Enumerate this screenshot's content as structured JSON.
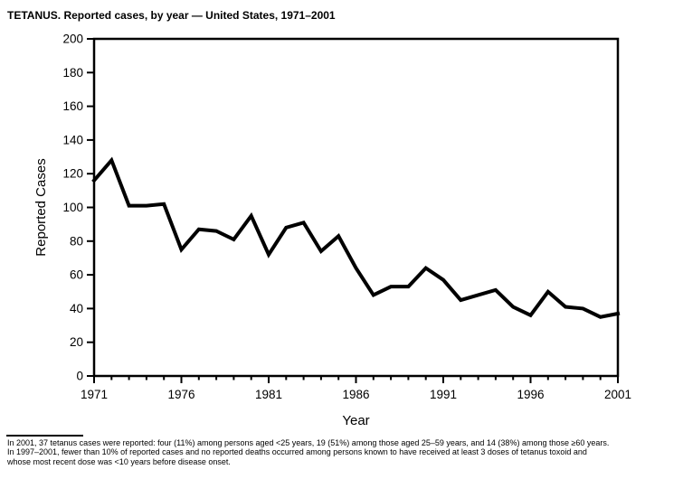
{
  "page": {
    "title": "TETANUS. Reported cases, by year — United States, 1971–2001",
    "footnote_lines": [
      "In 2001, 37 tetanus cases were reported: four (11%) among persons aged <25 years, 19 (51%) among those aged 25–59 years, and 14 (38%) among those ≥60 years.",
      "In 1997–2001, fewer than 10% of reported cases and no reported deaths occurred among persons known to have received at least 3 doses of tetanus toxoid and",
      "whose most recent dose was <10 years before disease onset."
    ]
  },
  "chart_data": {
    "type": "line",
    "title": "TETANUS. Reported cases, by year — United States, 1971–2001",
    "xlabel": "Year",
    "ylabel": "Reported Cases",
    "xlim": [
      1971,
      2001
    ],
    "ylim": [
      0,
      200
    ],
    "ytick_interval": 20,
    "x_minor_tick_interval": 1,
    "x_major_ticks": [
      1971,
      1976,
      1981,
      1986,
      1991,
      1996,
      2001
    ],
    "x": [
      1971,
      1972,
      1973,
      1974,
      1975,
      1976,
      1977,
      1978,
      1979,
      1980,
      1981,
      1982,
      1983,
      1984,
      1985,
      1986,
      1987,
      1988,
      1989,
      1990,
      1991,
      1992,
      1993,
      1994,
      1995,
      1996,
      1997,
      1998,
      1999,
      2000,
      2001
    ],
    "values": [
      116,
      128,
      101,
      101,
      102,
      75,
      87,
      86,
      81,
      95,
      72,
      88,
      91,
      74,
      83,
      64,
      48,
      53,
      53,
      64,
      57,
      45,
      48,
      51,
      41,
      36,
      50,
      41,
      40,
      35,
      37
    ],
    "line_color": "#000000",
    "grid": false,
    "legend": "none"
  }
}
